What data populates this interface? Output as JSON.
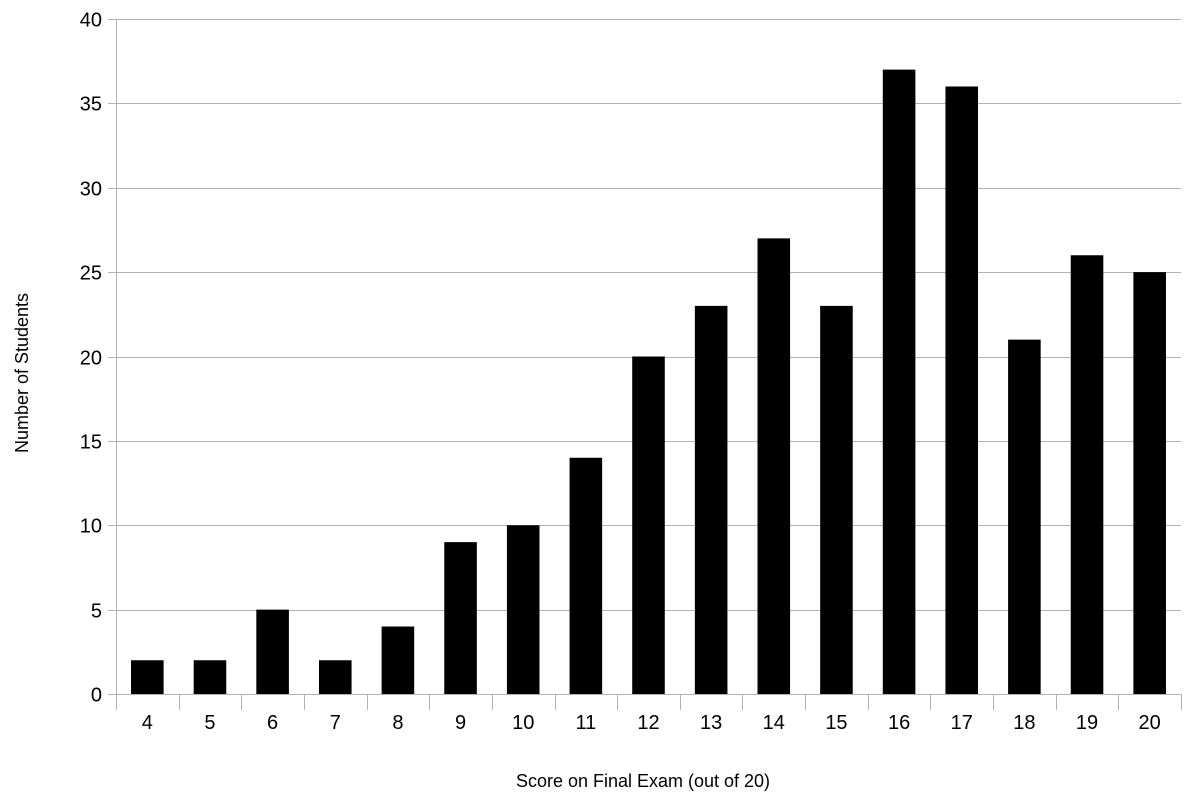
{
  "chart_data": {
    "type": "bar",
    "title": "",
    "xlabel": "Score on Final Exam (out of 20)",
    "ylabel": "Number of Students",
    "categories": [
      "4",
      "5",
      "6",
      "7",
      "8",
      "9",
      "10",
      "11",
      "12",
      "13",
      "14",
      "15",
      "16",
      "17",
      "18",
      "19",
      "20"
    ],
    "values": [
      2,
      2,
      5,
      2,
      4,
      9,
      10,
      14,
      20,
      23,
      27,
      23,
      37,
      36,
      21,
      26,
      25
    ],
    "ylim": [
      0,
      40
    ],
    "yticks": [
      0,
      5,
      10,
      15,
      20,
      25,
      30,
      35,
      40
    ],
    "grid": true,
    "legend": "none",
    "bar_color": "#000000",
    "grid_color": "#b3b3b3"
  }
}
